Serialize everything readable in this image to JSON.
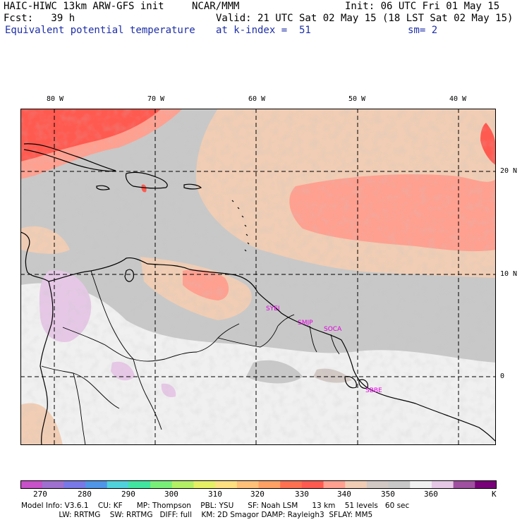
{
  "header": {
    "left1": "HAIC-HIWC 13km ARW-GFS init",
    "left1b": "NCAR/MMM",
    "right1": "Init: 06 UTC Fri 01 May 15",
    "fcst": "Fcst:   39 h",
    "valid": "Valid: 21 UTC Sat 02 May 15 (18 LST Sat 02 May 15)",
    "field": "Equivalent potential temperature",
    "level": "at k-index =  51",
    "smooth": "sm= 2"
  },
  "axes": {
    "lon_labels": [
      "80 W",
      "70 W",
      "60 W",
      "50 W",
      "40 W"
    ],
    "lat_labels": [
      "20 N",
      "10 N",
      "0"
    ]
  },
  "stations": [
    "SYEI",
    "SMJP",
    "SOCA",
    "SBBE"
  ],
  "colorbar": {
    "labels": [
      "270",
      "280",
      "290",
      "300",
      "310",
      "320",
      "330",
      "340",
      "350",
      "360",
      "K"
    ],
    "colors": [
      "#c850c8",
      "#a070d0",
      "#7878e8",
      "#5096e8",
      "#50d2dc",
      "#40e6a0",
      "#78f078",
      "#b4f064",
      "#e6f064",
      "#ffe080",
      "#ffc078",
      "#ffa064",
      "#ff7050",
      "#ff5a50",
      "#ffa090",
      "#f0cdb4",
      "#d2c8c4",
      "#c8c8c8",
      "#f0f0f0",
      "#e6c8e6",
      "#a050a0",
      "#780078"
    ]
  },
  "model_info": {
    "line1": "Model Info: V3.6.1    CU: KF      MP: Thompson    PBL: YSU      SF: Noah LSM      13 km    51 levels   60 sec",
    "line2": "                LW: RRTMG    SW: RRTMG   DIFF: full    KM: 2D Smagor DAMP: Rayleigh3  SFLAY: MM5"
  }
}
